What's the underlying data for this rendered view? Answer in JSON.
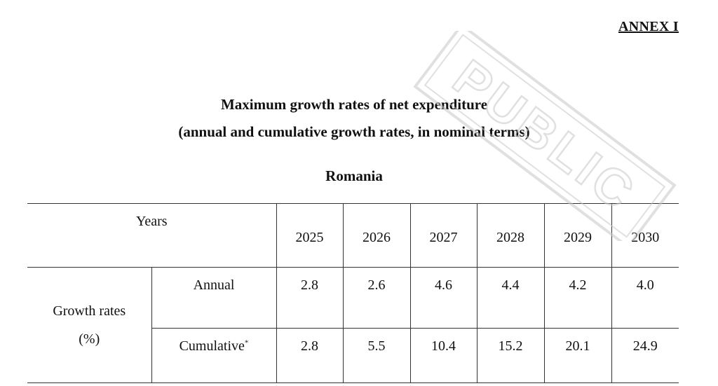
{
  "annex": "ANNEX I",
  "title_line1": "Maximum growth rates of net expenditure",
  "title_line2": "(annual and cumulative growth rates, in nominal terms)",
  "country": "Romania",
  "table": {
    "years_header": "Years",
    "years": [
      "2025",
      "2026",
      "2027",
      "2028",
      "2029",
      "2030"
    ],
    "group_label_line1": "Growth rates",
    "group_label_line2": "(%)",
    "annual_label": "Annual",
    "annual": [
      "2.8",
      "2.6",
      "4.6",
      "4.4",
      "4.2",
      "4.0"
    ],
    "cumulative_label": "Cumulative",
    "cumulative_mark": "*",
    "cumulative": [
      "2.8",
      "5.5",
      "10.4",
      "15.2",
      "20.1",
      "24.9"
    ]
  },
  "watermark": {
    "text": "PUBLIC",
    "color": "#c8c8c8"
  }
}
